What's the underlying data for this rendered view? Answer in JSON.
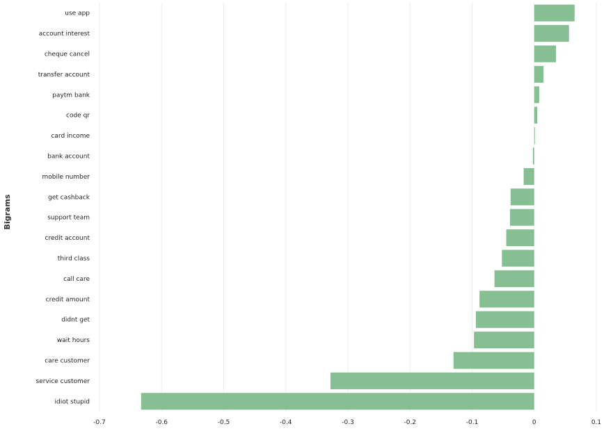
{
  "chart_data": {
    "type": "bar",
    "orientation": "horizontal",
    "ylabel": "Bigrams",
    "xlabel": "",
    "xlim": [
      -0.7,
      0.1
    ],
    "xticks": [
      -0.7,
      -0.6,
      -0.5,
      -0.4,
      -0.3,
      -0.2,
      -0.1,
      0,
      0.1
    ],
    "xtick_labels": [
      "-0.7",
      "-0.6",
      "-0.5",
      "-0.4",
      "-0.3",
      "-0.2",
      "-0.1",
      "0",
      "0.1"
    ],
    "grid": true,
    "bar_color": "#86bf91",
    "categories": [
      "use app",
      "account interest",
      "cheque cancel",
      "transfer account",
      "paytm bank",
      "code qr",
      "card income",
      "bank account",
      "mobile number",
      "get cashback",
      "support team",
      "credit account",
      "third class",
      "call care",
      "credit amount",
      "didnt get",
      "wait hours",
      "care customer",
      "service customer",
      "idiot stupid"
    ],
    "values": [
      0.065,
      0.056,
      0.035,
      0.015,
      0.008,
      0.005,
      0.001,
      -0.002,
      -0.017,
      -0.038,
      -0.039,
      -0.045,
      -0.052,
      -0.064,
      -0.088,
      -0.094,
      -0.097,
      -0.13,
      -0.328,
      -0.633
    ]
  }
}
